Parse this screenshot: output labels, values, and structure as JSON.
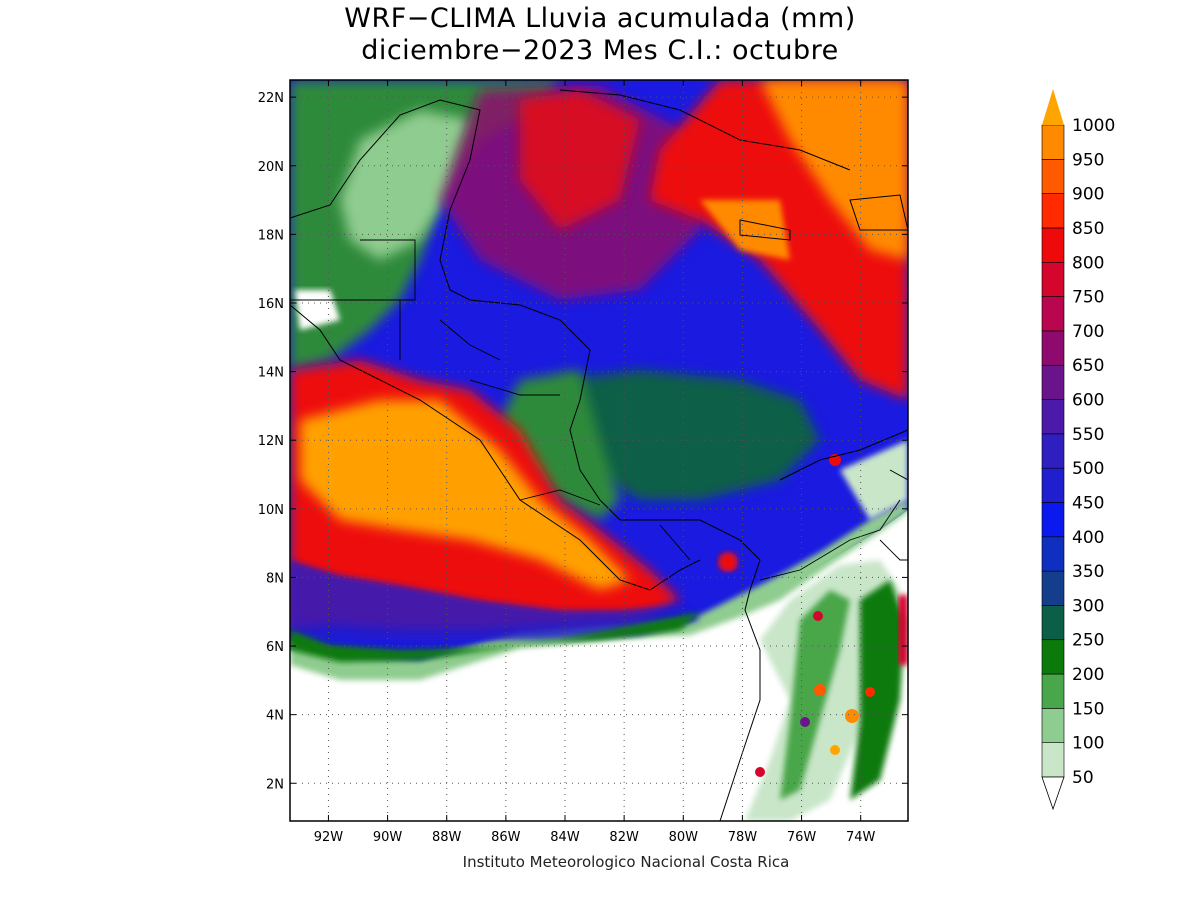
{
  "title": {
    "line1": "WRF−CLIMA Lluvia acumulada (mm)",
    "line2": "diciembre−2023 Mes C.I.: octubre"
  },
  "credit": "Instituto Meteorologico Nacional Costa Rica",
  "axes": {
    "lon_labels": [
      "92W",
      "90W",
      "88W",
      "86W",
      "84W",
      "82W",
      "80W",
      "78W",
      "76W",
      "74W"
    ],
    "lon_values": [
      -92,
      -90,
      -88,
      -86,
      -84,
      -82,
      -80,
      -78,
      -76,
      -74
    ],
    "lat_labels": [
      "2N",
      "4N",
      "6N",
      "8N",
      "10N",
      "12N",
      "14N",
      "16N",
      "18N",
      "20N",
      "22N"
    ],
    "lat_values": [
      2,
      4,
      6,
      8,
      10,
      12,
      14,
      16,
      18,
      20,
      22
    ],
    "lon_range": [
      -93.3,
      -72.4
    ],
    "lat_range": [
      0.9,
      22.5
    ],
    "grid": "dotted"
  },
  "colorbar": {
    "levels": [
      "50",
      "100",
      "150",
      "200",
      "250",
      "300",
      "350",
      "400",
      "450",
      "500",
      "550",
      "600",
      "650",
      "700",
      "750",
      "800",
      "850",
      "900",
      "950",
      "1000"
    ],
    "colors": [
      "#c9e6c9",
      "#8fcc8f",
      "#4aa64a",
      "#0b7a0b",
      "#0d5e46",
      "#143e8c",
      "#0f2fbf",
      "#0a1aef",
      "#1f1fd0",
      "#2f1fc0",
      "#4b1aa8",
      "#6a148c",
      "#8e0a6e",
      "#b8074e",
      "#d5062d",
      "#ee0a0a",
      "#ff2a00",
      "#ff5a00",
      "#ff8a00",
      "#ffa500"
    ]
  },
  "regions": {
    "dry": {
      "label": "<50",
      "color": "#ffffff"
    },
    "green": {
      "color": "#2e8a3a"
    },
    "deep_green": {
      "color": "#0d5e46"
    },
    "blue": {
      "color": "#1a1ae0"
    },
    "purple": {
      "color": "#5a1aa8"
    },
    "red": {
      "color": "#ff2a10"
    },
    "orange": {
      "color": "#ffa000"
    }
  }
}
